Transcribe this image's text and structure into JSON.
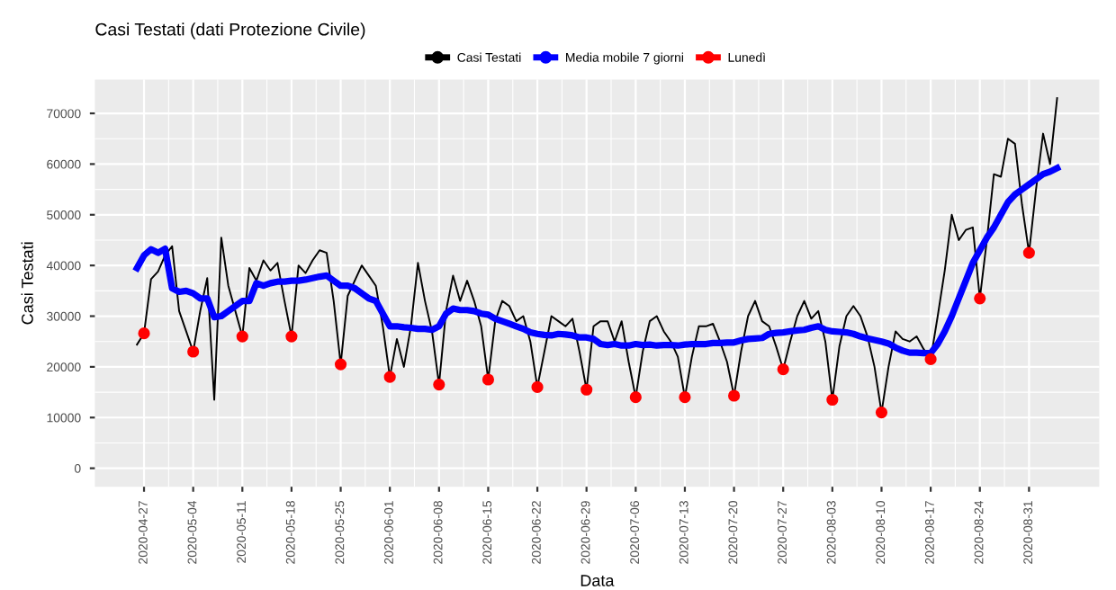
{
  "chart_data": {
    "type": "line",
    "title": "Casi Testati (dati Protezione Civile)",
    "xlabel": "Data",
    "ylabel": "Casi Testati",
    "x": [
      "2020-04-26",
      "2020-04-27",
      "2020-04-28",
      "2020-04-29",
      "2020-04-30",
      "2020-05-01",
      "2020-05-02",
      "2020-05-03",
      "2020-05-04",
      "2020-05-05",
      "2020-05-06",
      "2020-05-07",
      "2020-05-08",
      "2020-05-09",
      "2020-05-10",
      "2020-05-11",
      "2020-05-12",
      "2020-05-13",
      "2020-05-14",
      "2020-05-15",
      "2020-05-16",
      "2020-05-17",
      "2020-05-18",
      "2020-05-19",
      "2020-05-20",
      "2020-05-21",
      "2020-05-22",
      "2020-05-23",
      "2020-05-24",
      "2020-05-25",
      "2020-05-26",
      "2020-05-27",
      "2020-05-28",
      "2020-05-29",
      "2020-05-30",
      "2020-05-31",
      "2020-06-01",
      "2020-06-02",
      "2020-06-03",
      "2020-06-04",
      "2020-06-05",
      "2020-06-06",
      "2020-06-07",
      "2020-06-08",
      "2020-06-09",
      "2020-06-10",
      "2020-06-11",
      "2020-06-12",
      "2020-06-13",
      "2020-06-14",
      "2020-06-15",
      "2020-06-16",
      "2020-06-17",
      "2020-06-18",
      "2020-06-19",
      "2020-06-20",
      "2020-06-21",
      "2020-06-22",
      "2020-06-23",
      "2020-06-24",
      "2020-06-25",
      "2020-06-26",
      "2020-06-27",
      "2020-06-28",
      "2020-06-29",
      "2020-06-30",
      "2020-07-01",
      "2020-07-02",
      "2020-07-03",
      "2020-07-04",
      "2020-07-05",
      "2020-07-06",
      "2020-07-07",
      "2020-07-08",
      "2020-07-09",
      "2020-07-10",
      "2020-07-11",
      "2020-07-12",
      "2020-07-13",
      "2020-07-14",
      "2020-07-15",
      "2020-07-16",
      "2020-07-17",
      "2020-07-18",
      "2020-07-19",
      "2020-07-20",
      "2020-07-21",
      "2020-07-22",
      "2020-07-23",
      "2020-07-24",
      "2020-07-25",
      "2020-07-26",
      "2020-07-27",
      "2020-07-28",
      "2020-07-29",
      "2020-07-30",
      "2020-07-31",
      "2020-08-01",
      "2020-08-02",
      "2020-08-03",
      "2020-08-04",
      "2020-08-05",
      "2020-08-06",
      "2020-08-07",
      "2020-08-08",
      "2020-08-09",
      "2020-08-10",
      "2020-08-11",
      "2020-08-12",
      "2020-08-13",
      "2020-08-14",
      "2020-08-15",
      "2020-08-16",
      "2020-08-17",
      "2020-08-18",
      "2020-08-19",
      "2020-08-20",
      "2020-08-21",
      "2020-08-22",
      "2020-08-23",
      "2020-08-24",
      "2020-08-25",
      "2020-08-26",
      "2020-08-27",
      "2020-08-28",
      "2020-08-29",
      "2020-08-30",
      "2020-08-31",
      "2020-09-01",
      "2020-09-02",
      "2020-09-03",
      "2020-09-04"
    ],
    "series": [
      {
        "name": "Casi Testati",
        "color": "#000000",
        "values": [
          24400,
          26600,
          37300,
          38800,
          42000,
          43800,
          31000,
          27000,
          23000,
          31000,
          37500,
          13500,
          45500,
          36000,
          31000,
          26000,
          39500,
          37000,
          41000,
          39000,
          40500,
          33000,
          26000,
          40000,
          38500,
          41000,
          43000,
          42500,
          33000,
          20500,
          34000,
          37000,
          40000,
          38000,
          36000,
          28000,
          18000,
          25500,
          20000,
          28000,
          40500,
          33000,
          27000,
          16500,
          31000,
          38000,
          33000,
          37000,
          33000,
          28000,
          17500,
          29000,
          33000,
          32000,
          29000,
          30000,
          25000,
          16000,
          23000,
          30000,
          29000,
          28000,
          29500,
          23000,
          15500,
          28000,
          29000,
          29000,
          25000,
          29000,
          21000,
          14000,
          23000,
          29000,
          30000,
          27000,
          25000,
          22000,
          14000,
          22000,
          28000,
          28000,
          28500,
          25000,
          21000,
          14300,
          23000,
          30000,
          33000,
          29000,
          28000,
          24000,
          19500,
          25000,
          30000,
          33000,
          29500,
          31000,
          25000,
          13500,
          24000,
          30000,
          32000,
          30000,
          26000,
          20000,
          11000,
          20000,
          27000,
          25500,
          25000,
          26000,
          23500,
          21500,
          30000,
          39000,
          50000,
          45000,
          47000,
          47500,
          33500,
          45000,
          58000,
          57500,
          65000,
          64000,
          52000,
          42500,
          55000,
          66000,
          60000,
          73000
        ]
      },
      {
        "name": "Media mobile 7 giorni",
        "color": "#0000ff",
        "values": [
          39500,
          42000,
          43200,
          42500,
          43300,
          35500,
          34800,
          35000,
          34500,
          33500,
          33500,
          29800,
          30000,
          31000,
          32000,
          33000,
          33000,
          36500,
          36000,
          36500,
          36800,
          36800,
          37000,
          37000,
          37200,
          37500,
          37800,
          38000,
          37000,
          36000,
          36000,
          35500,
          34500,
          33500,
          33000,
          30500,
          28000,
          28000,
          27800,
          27700,
          27500,
          27500,
          27300,
          28000,
          30500,
          31500,
          31200,
          31200,
          31000,
          30500,
          30300,
          29500,
          29000,
          28500,
          28000,
          27500,
          26800,
          26500,
          26300,
          26200,
          26500,
          26400,
          26200,
          25800,
          25800,
          25500,
          24500,
          24300,
          24500,
          24200,
          24200,
          24500,
          24300,
          24400,
          24200,
          24300,
          24300,
          24200,
          24400,
          24500,
          24500,
          24500,
          24700,
          24700,
          24800,
          24800,
          25200,
          25500,
          25600,
          25700,
          26500,
          26700,
          26800,
          27000,
          27200,
          27300,
          27700,
          28000,
          27300,
          27000,
          26900,
          26800,
          26500,
          26000,
          25600,
          25300,
          25000,
          24600,
          23800,
          23200,
          22800,
          22800,
          22700,
          22700,
          24500,
          27000,
          30000,
          33500,
          37000,
          40500,
          43000,
          45500,
          47500,
          50000,
          52500,
          54000,
          55000,
          56000,
          57000,
          58000,
          58500,
          59200
        ]
      },
      {
        "name": "Lunedì",
        "color": "#ff0000",
        "type": "scatter",
        "x": [
          "2020-04-27",
          "2020-05-04",
          "2020-05-11",
          "2020-05-18",
          "2020-05-25",
          "2020-06-01",
          "2020-06-08",
          "2020-06-15",
          "2020-06-22",
          "2020-06-29",
          "2020-07-06",
          "2020-07-13",
          "2020-07-20",
          "2020-07-27",
          "2020-08-03",
          "2020-08-10",
          "2020-08-17",
          "2020-08-24",
          "2020-08-31"
        ],
        "values": [
          26600,
          23000,
          26000,
          26000,
          20500,
          18000,
          16500,
          17500,
          16000,
          15500,
          14000,
          14000,
          14300,
          19500,
          13500,
          11000,
          21500,
          33500,
          42500
        ]
      }
    ],
    "xlim": [
      "2020-04-20",
      "2020-09-10"
    ],
    "xticks": [
      {
        "value": "2020-04-27",
        "label": "2020-04-27"
      },
      {
        "value": "2020-05-04",
        "label": "2020-05-04"
      },
      {
        "value": "2020-05-11",
        "label": "2020-05-11"
      },
      {
        "value": "2020-05-18",
        "label": "2020-05-18"
      },
      {
        "value": "2020-05-25",
        "label": "2020-05-25"
      },
      {
        "value": "2020-06-01",
        "label": "2020-06-01"
      },
      {
        "value": "2020-06-08",
        "label": "2020-06-08"
      },
      {
        "value": "2020-06-15",
        "label": "2020-06-15"
      },
      {
        "value": "2020-06-22",
        "label": "2020-06-22"
      },
      {
        "value": "2020-06-29",
        "label": "2020-06-29"
      },
      {
        "value": "2020-07-06",
        "label": "2020-07-06"
      },
      {
        "value": "2020-07-13",
        "label": "2020-07-13"
      },
      {
        "value": "2020-07-20",
        "label": "2020-07-20"
      },
      {
        "value": "2020-07-27",
        "label": "2020-07-27"
      },
      {
        "value": "2020-08-03",
        "label": "2020-08-03"
      },
      {
        "value": "2020-08-10",
        "label": "2020-08-10"
      },
      {
        "value": "2020-08-17",
        "label": "2020-08-17"
      },
      {
        "value": "2020-08-24",
        "label": "2020-08-24"
      },
      {
        "value": "2020-08-31",
        "label": "2020-08-31"
      }
    ],
    "ylim": [
      -3650,
      76650
    ],
    "yticks": [
      0,
      10000,
      20000,
      30000,
      40000,
      50000,
      60000,
      70000
    ],
    "grid": true,
    "legend": "top"
  }
}
